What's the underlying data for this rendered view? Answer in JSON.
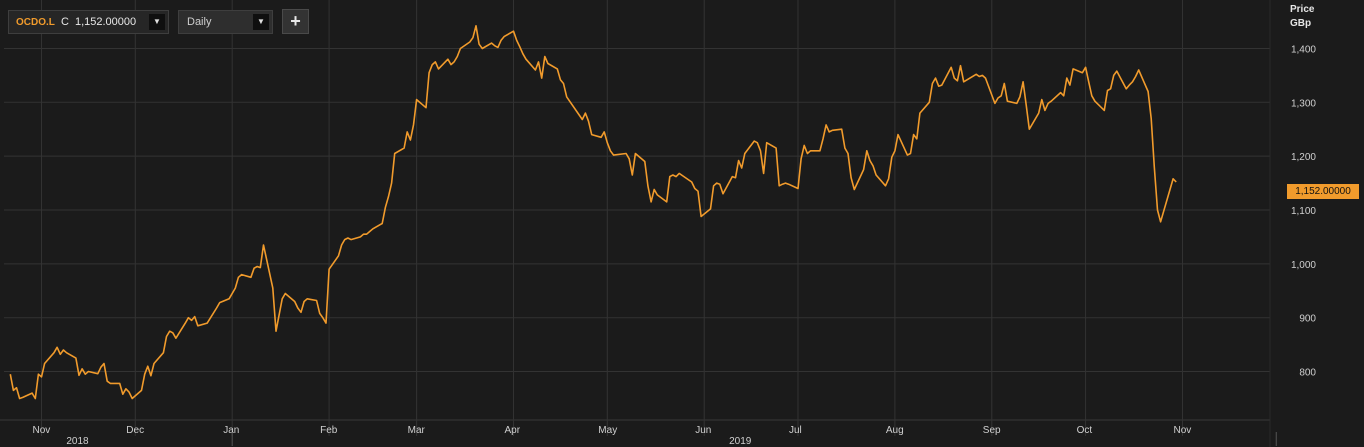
{
  "toolbar": {
    "ric": "OCDO.L",
    "field_prefix": "C",
    "last_value": "1,152.00000",
    "interval": "Daily",
    "add_label": "+"
  },
  "colors": {
    "line": "#f19b2c",
    "background": "#1b1b1b",
    "grid": "#333333"
  },
  "chart_data": {
    "type": "line",
    "title": "",
    "ylabel": "Price",
    "yunit": "GBp",
    "ylim": [
      710,
      1490
    ],
    "yticks": [
      800,
      900,
      1000,
      1100,
      1200,
      1300,
      1400
    ],
    "ytick_labels": [
      "800",
      "900",
      "1,000",
      "1,100",
      "1,200",
      "1,300",
      "1,400"
    ],
    "grid": true,
    "last_price_label": "1,152.00000",
    "xlim": [
      "2018-10-20",
      "2019-11-29"
    ],
    "month_ticks": [
      {
        "date": "2018-11-01",
        "label": "Nov"
      },
      {
        "date": "2018-12-01",
        "label": "Dec"
      },
      {
        "date": "2019-01-01",
        "label": "Jan"
      },
      {
        "date": "2019-02-01",
        "label": "Feb"
      },
      {
        "date": "2019-03-01",
        "label": "Mar"
      },
      {
        "date": "2019-04-01",
        "label": "Apr"
      },
      {
        "date": "2019-05-01",
        "label": "May"
      },
      {
        "date": "2019-06-01",
        "label": "Jun"
      },
      {
        "date": "2019-07-01",
        "label": "Jul"
      },
      {
        "date": "2019-08-01",
        "label": "Aug"
      },
      {
        "date": "2019-09-01",
        "label": "Sep"
      },
      {
        "date": "2019-10-01",
        "label": "Oct"
      },
      {
        "date": "2019-11-01",
        "label": "Nov"
      }
    ],
    "year_ticks": [
      {
        "date": "2018-11-01",
        "label": "2018"
      },
      {
        "date": "2019-06-01",
        "label": "2019"
      }
    ],
    "year_separators": [
      "2019-01-01",
      "2019-12-01"
    ],
    "series": [
      {
        "points": [
          [
            "2018-10-22",
            795
          ],
          [
            "2018-10-23",
            765
          ],
          [
            "2018-10-24",
            770
          ],
          [
            "2018-10-25",
            750
          ],
          [
            "2018-10-26",
            752
          ],
          [
            "2018-10-29",
            760
          ],
          [
            "2018-10-30",
            750
          ],
          [
            "2018-10-31",
            795
          ],
          [
            "2018-11-01",
            790
          ],
          [
            "2018-11-02",
            815
          ],
          [
            "2018-11-05",
            835
          ],
          [
            "2018-11-06",
            845
          ],
          [
            "2018-11-07",
            832
          ],
          [
            "2018-11-08",
            840
          ],
          [
            "2018-11-09",
            835
          ],
          [
            "2018-11-12",
            825
          ],
          [
            "2018-11-13",
            793
          ],
          [
            "2018-11-14",
            805
          ],
          [
            "2018-11-15",
            795
          ],
          [
            "2018-11-16",
            800
          ],
          [
            "2018-11-19",
            796
          ],
          [
            "2018-11-20",
            808
          ],
          [
            "2018-11-21",
            815
          ],
          [
            "2018-11-22",
            782
          ],
          [
            "2018-11-23",
            778
          ],
          [
            "2018-11-26",
            778
          ],
          [
            "2018-11-27",
            758
          ],
          [
            "2018-11-28",
            768
          ],
          [
            "2018-11-29",
            762
          ],
          [
            "2018-11-30",
            750
          ],
          [
            "2018-12-03",
            765
          ],
          [
            "2018-12-04",
            795
          ],
          [
            "2018-12-05",
            810
          ],
          [
            "2018-12-06",
            792
          ],
          [
            "2018-12-07",
            815
          ],
          [
            "2018-12-10",
            835
          ],
          [
            "2018-12-11",
            865
          ],
          [
            "2018-12-12",
            875
          ],
          [
            "2018-12-13",
            872
          ],
          [
            "2018-12-14",
            862
          ],
          [
            "2018-12-17",
            890
          ],
          [
            "2018-12-18",
            900
          ],
          [
            "2018-12-19",
            895
          ],
          [
            "2018-12-20",
            902
          ],
          [
            "2018-12-21",
            885
          ],
          [
            "2018-12-24",
            890
          ],
          [
            "2018-12-27",
            918
          ],
          [
            "2018-12-28",
            928
          ],
          [
            "2018-12-31",
            935
          ],
          [
            "2019-01-02",
            955
          ],
          [
            "2019-01-03",
            975
          ],
          [
            "2019-01-04",
            980
          ],
          [
            "2019-01-07",
            975
          ],
          [
            "2019-01-08",
            992
          ],
          [
            "2019-01-09",
            995
          ],
          [
            "2019-01-10",
            993
          ],
          [
            "2019-01-11",
            1035
          ],
          [
            "2019-01-14",
            955
          ],
          [
            "2019-01-15",
            875
          ],
          [
            "2019-01-16",
            905
          ],
          [
            "2019-01-17",
            935
          ],
          [
            "2019-01-18",
            945
          ],
          [
            "2019-01-21",
            930
          ],
          [
            "2019-01-22",
            918
          ],
          [
            "2019-01-23",
            910
          ],
          [
            "2019-01-24",
            930
          ],
          [
            "2019-01-25",
            935
          ],
          [
            "2019-01-28",
            932
          ],
          [
            "2019-01-29",
            908
          ],
          [
            "2019-01-30",
            900
          ],
          [
            "2019-01-31",
            890
          ],
          [
            "2019-02-01",
            990
          ],
          [
            "2019-02-04",
            1015
          ],
          [
            "2019-02-05",
            1035
          ],
          [
            "2019-02-06",
            1045
          ],
          [
            "2019-02-07",
            1048
          ],
          [
            "2019-02-08",
            1045
          ],
          [
            "2019-02-11",
            1050
          ],
          [
            "2019-02-12",
            1055
          ],
          [
            "2019-02-13",
            1055
          ],
          [
            "2019-02-14",
            1060
          ],
          [
            "2019-02-15",
            1065
          ],
          [
            "2019-02-18",
            1075
          ],
          [
            "2019-02-19",
            1105
          ],
          [
            "2019-02-20",
            1125
          ],
          [
            "2019-02-21",
            1150
          ],
          [
            "2019-02-22",
            1205
          ],
          [
            "2019-02-25",
            1215
          ],
          [
            "2019-02-26",
            1245
          ],
          [
            "2019-02-27",
            1230
          ],
          [
            "2019-02-28",
            1258
          ],
          [
            "2019-03-01",
            1305
          ],
          [
            "2019-03-04",
            1290
          ],
          [
            "2019-03-05",
            1355
          ],
          [
            "2019-03-06",
            1370
          ],
          [
            "2019-03-07",
            1375
          ],
          [
            "2019-03-08",
            1362
          ],
          [
            "2019-03-11",
            1380
          ],
          [
            "2019-03-12",
            1370
          ],
          [
            "2019-03-13",
            1375
          ],
          [
            "2019-03-14",
            1385
          ],
          [
            "2019-03-15",
            1400
          ],
          [
            "2019-03-18",
            1412
          ],
          [
            "2019-03-19",
            1420
          ],
          [
            "2019-03-20",
            1442
          ],
          [
            "2019-03-21",
            1408
          ],
          [
            "2019-03-22",
            1400
          ],
          [
            "2019-03-25",
            1410
          ],
          [
            "2019-03-26",
            1405
          ],
          [
            "2019-03-27",
            1402
          ],
          [
            "2019-03-28",
            1415
          ],
          [
            "2019-03-29",
            1422
          ],
          [
            "2019-04-01",
            1432
          ],
          [
            "2019-04-02",
            1415
          ],
          [
            "2019-04-03",
            1403
          ],
          [
            "2019-04-04",
            1390
          ],
          [
            "2019-04-05",
            1380
          ],
          [
            "2019-04-08",
            1360
          ],
          [
            "2019-04-09",
            1375
          ],
          [
            "2019-04-10",
            1345
          ],
          [
            "2019-04-11",
            1385
          ],
          [
            "2019-04-12",
            1372
          ],
          [
            "2019-04-15",
            1362
          ],
          [
            "2019-04-16",
            1342
          ],
          [
            "2019-04-17",
            1335
          ],
          [
            "2019-04-18",
            1310
          ],
          [
            "2019-04-23",
            1268
          ],
          [
            "2019-04-24",
            1280
          ],
          [
            "2019-04-25",
            1265
          ],
          [
            "2019-04-26",
            1240
          ],
          [
            "2019-04-29",
            1235
          ],
          [
            "2019-04-30",
            1245
          ],
          [
            "2019-05-01",
            1225
          ],
          [
            "2019-05-02",
            1210
          ],
          [
            "2019-05-03",
            1202
          ],
          [
            "2019-05-07",
            1205
          ],
          [
            "2019-05-08",
            1195
          ],
          [
            "2019-05-09",
            1165
          ],
          [
            "2019-05-10",
            1205
          ],
          [
            "2019-05-13",
            1190
          ],
          [
            "2019-05-14",
            1145
          ],
          [
            "2019-05-15",
            1115
          ],
          [
            "2019-05-16",
            1138
          ],
          [
            "2019-05-17",
            1128
          ],
          [
            "2019-05-20",
            1115
          ],
          [
            "2019-05-21",
            1162
          ],
          [
            "2019-05-22",
            1165
          ],
          [
            "2019-05-23",
            1162
          ],
          [
            "2019-05-24",
            1168
          ],
          [
            "2019-05-28",
            1152
          ],
          [
            "2019-05-29",
            1140
          ],
          [
            "2019-05-30",
            1135
          ],
          [
            "2019-05-31",
            1088
          ],
          [
            "2019-06-03",
            1102
          ],
          [
            "2019-06-04",
            1145
          ],
          [
            "2019-06-05",
            1150
          ],
          [
            "2019-06-06",
            1148
          ],
          [
            "2019-06-07",
            1130
          ],
          [
            "2019-06-10",
            1162
          ],
          [
            "2019-06-11",
            1160
          ],
          [
            "2019-06-12",
            1192
          ],
          [
            "2019-06-13",
            1178
          ],
          [
            "2019-06-14",
            1205
          ],
          [
            "2019-06-17",
            1228
          ],
          [
            "2019-06-18",
            1225
          ],
          [
            "2019-06-19",
            1210
          ],
          [
            "2019-06-20",
            1168
          ],
          [
            "2019-06-21",
            1225
          ],
          [
            "2019-06-24",
            1215
          ],
          [
            "2019-06-25",
            1145
          ],
          [
            "2019-06-26",
            1148
          ],
          [
            "2019-06-27",
            1150
          ],
          [
            "2019-06-28",
            1148
          ],
          [
            "2019-07-01",
            1140
          ],
          [
            "2019-07-02",
            1195
          ],
          [
            "2019-07-03",
            1220
          ],
          [
            "2019-07-04",
            1205
          ],
          [
            "2019-07-05",
            1210
          ],
          [
            "2019-07-08",
            1210
          ],
          [
            "2019-07-09",
            1232
          ],
          [
            "2019-07-10",
            1258
          ],
          [
            "2019-07-11",
            1245
          ],
          [
            "2019-07-12",
            1248
          ],
          [
            "2019-07-15",
            1250
          ],
          [
            "2019-07-16",
            1215
          ],
          [
            "2019-07-17",
            1205
          ],
          [
            "2019-07-18",
            1160
          ],
          [
            "2019-07-19",
            1138
          ],
          [
            "2019-07-22",
            1175
          ],
          [
            "2019-07-23",
            1210
          ],
          [
            "2019-07-24",
            1192
          ],
          [
            "2019-07-25",
            1182
          ],
          [
            "2019-07-26",
            1165
          ],
          [
            "2019-07-29",
            1145
          ],
          [
            "2019-07-30",
            1158
          ],
          [
            "2019-07-31",
            1198
          ],
          [
            "2019-08-01",
            1210
          ],
          [
            "2019-08-02",
            1240
          ],
          [
            "2019-08-05",
            1202
          ],
          [
            "2019-08-06",
            1205
          ],
          [
            "2019-08-07",
            1240
          ],
          [
            "2019-08-08",
            1232
          ],
          [
            "2019-08-09",
            1280
          ],
          [
            "2019-08-12",
            1300
          ],
          [
            "2019-08-13",
            1335
          ],
          [
            "2019-08-14",
            1345
          ],
          [
            "2019-08-15",
            1330
          ],
          [
            "2019-08-16",
            1332
          ],
          [
            "2019-08-19",
            1365
          ],
          [
            "2019-08-20",
            1345
          ],
          [
            "2019-08-21",
            1340
          ],
          [
            "2019-08-22",
            1368
          ],
          [
            "2019-08-23",
            1338
          ],
          [
            "2019-08-27",
            1352
          ],
          [
            "2019-08-28",
            1348
          ],
          [
            "2019-08-29",
            1350
          ],
          [
            "2019-08-30",
            1345
          ],
          [
            "2019-09-02",
            1298
          ],
          [
            "2019-09-03",
            1308
          ],
          [
            "2019-09-04",
            1312
          ],
          [
            "2019-09-05",
            1335
          ],
          [
            "2019-09-06",
            1302
          ],
          [
            "2019-09-09",
            1298
          ],
          [
            "2019-09-10",
            1310
          ],
          [
            "2019-09-11",
            1338
          ],
          [
            "2019-09-12",
            1295
          ],
          [
            "2019-09-13",
            1250
          ],
          [
            "2019-09-16",
            1280
          ],
          [
            "2019-09-17",
            1305
          ],
          [
            "2019-09-18",
            1285
          ],
          [
            "2019-09-19",
            1298
          ],
          [
            "2019-09-20",
            1302
          ],
          [
            "2019-09-23",
            1318
          ],
          [
            "2019-09-24",
            1312
          ],
          [
            "2019-09-25",
            1345
          ],
          [
            "2019-09-26",
            1332
          ],
          [
            "2019-09-27",
            1362
          ],
          [
            "2019-09-30",
            1355
          ],
          [
            "2019-10-01",
            1365
          ],
          [
            "2019-10-02",
            1338
          ],
          [
            "2019-10-03",
            1312
          ],
          [
            "2019-10-04",
            1302
          ],
          [
            "2019-10-07",
            1285
          ],
          [
            "2019-10-08",
            1322
          ],
          [
            "2019-10-09",
            1325
          ],
          [
            "2019-10-10",
            1350
          ],
          [
            "2019-10-11",
            1358
          ],
          [
            "2019-10-14",
            1325
          ],
          [
            "2019-10-15",
            1332
          ],
          [
            "2019-10-16",
            1338
          ],
          [
            "2019-10-17",
            1348
          ],
          [
            "2019-10-18",
            1360
          ],
          [
            "2019-10-21",
            1320
          ],
          [
            "2019-10-22",
            1270
          ],
          [
            "2019-10-23",
            1180
          ],
          [
            "2019-10-24",
            1100
          ],
          [
            "2019-10-25",
            1078
          ],
          [
            "2019-10-28",
            1138
          ],
          [
            "2019-10-29",
            1158
          ],
          [
            "2019-10-30",
            1152
          ]
        ]
      }
    ]
  }
}
